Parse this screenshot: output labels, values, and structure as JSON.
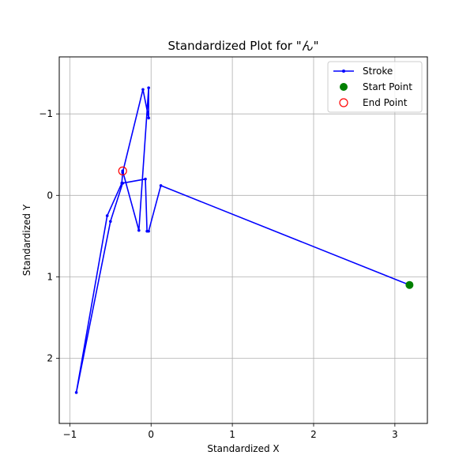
{
  "chart_data": {
    "type": "line",
    "title": "Standardized Plot for \"ん\"",
    "xlabel": "Standardized X",
    "ylabel": "Standardized Y",
    "xlim": [
      -1.13,
      3.4
    ],
    "ylim": [
      2.8,
      -1.7
    ],
    "y_inverted": true,
    "grid": true,
    "legend_position": "top-right",
    "xticks": [
      -1,
      0,
      1,
      2,
      3
    ],
    "xtick_labels": [
      "−1",
      "0",
      "1",
      "2",
      "3"
    ],
    "yticks": [
      -1,
      0,
      1,
      2
    ],
    "ytick_labels": [
      "−1",
      "0",
      "1",
      "2"
    ],
    "series": [
      {
        "name": "Stroke",
        "color": "#0000ff",
        "x": [
          3.18,
          0.12,
          -0.03,
          -0.05,
          -0.07,
          -0.35,
          -0.5,
          -0.92,
          -0.54,
          -0.36,
          -0.35,
          -0.1,
          -0.03,
          -0.03,
          -0.15,
          -0.35
        ],
        "y": [
          1.1,
          -0.12,
          0.44,
          0.44,
          -0.2,
          -0.15,
          0.32,
          2.42,
          0.25,
          -0.15,
          -0.28,
          -1.3,
          -0.95,
          -1.32,
          0.43,
          -0.3
        ]
      }
    ],
    "start_point": {
      "name": "Start Point",
      "x": 3.18,
      "y": 1.1,
      "color": "#008000"
    },
    "end_point": {
      "name": "End Point",
      "x": -0.35,
      "y": -0.3,
      "color": "#ff0000"
    }
  }
}
